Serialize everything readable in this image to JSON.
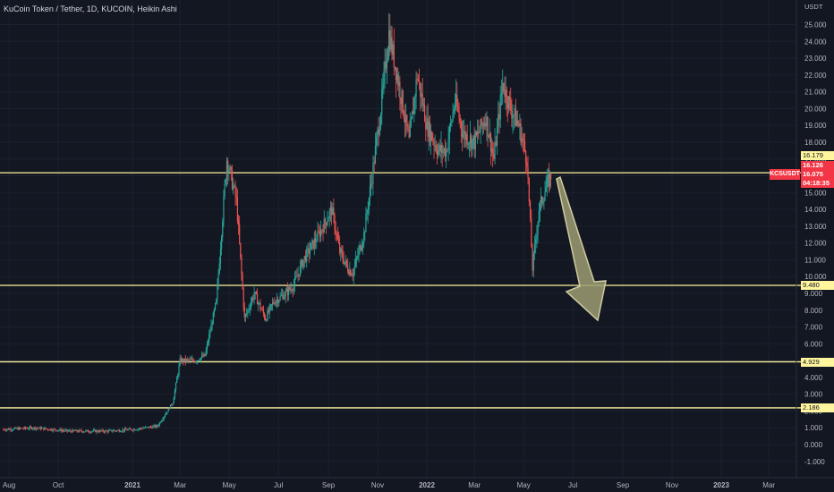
{
  "header": {
    "title": "KuCoin Token / Tether, 1D, KUCOIN, Heikin Ashi",
    "currency": "USDT",
    "symbol_tag": "KCSUSDT"
  },
  "price_labels": {
    "high": "16.179",
    "current_high": "16.126",
    "last": "16.075",
    "countdown": "04:18:35",
    "level_1": "9.480",
    "level_2": "4.929",
    "level_3": "2.186"
  },
  "colors": {
    "background": "#131722",
    "up_candle": "#26a69a",
    "down_candle": "#ef5350",
    "level_line": "#fff59d",
    "arrow_fill": "#9e9c72",
    "last_price": "#f23645"
  },
  "chart_data": {
    "type": "candlestick",
    "title": "KuCoin Token / Tether, 1D, KUCOIN, Heikin Ashi",
    "y_unit": "USDT",
    "ylim": [
      -1.6,
      26.5
    ],
    "y_ticks": [
      "-1.000",
      "0.000",
      "1.000",
      "2.000",
      "3.000",
      "4.000",
      "5.000",
      "6.000",
      "7.000",
      "8.000",
      "9.000",
      "10.000",
      "11.000",
      "12.000",
      "13.000",
      "14.000",
      "15.000",
      "16.000",
      "17.000",
      "18.000",
      "19.000",
      "20.000",
      "21.000",
      "22.000",
      "23.000",
      "24.000",
      "25.000"
    ],
    "x_ticks": [
      "Aug",
      "Oct",
      "2021",
      "Mar",
      "May",
      "Jul",
      "Sep",
      "Nov",
      "2022",
      "Mar",
      "May",
      "Jul",
      "Sep",
      "Nov",
      "2023",
      "Mar"
    ],
    "series": [
      {
        "x": [
          "2020-07-25",
          "2020-09-01",
          "2020-10-15",
          "2020-12-01",
          "2021-01-01",
          "2021-02-01",
          "2021-02-20",
          "2021-03-01",
          "2021-03-20",
          "2021-04-01",
          "2021-04-15",
          "2021-04-28",
          "2021-05-10",
          "2021-05-20",
          "2021-06-01",
          "2021-06-15",
          "2021-06-25",
          "2021-07-10",
          "2021-07-20",
          "2021-08-01",
          "2021-08-20",
          "2021-09-05",
          "2021-09-15",
          "2021-09-25",
          "2021-10-01",
          "2021-10-15",
          "2021-10-25",
          "2021-11-05",
          "2021-11-15",
          "2021-11-25",
          "2021-12-01",
          "2021-12-10",
          "2021-12-20",
          "2022-01-01",
          "2022-01-15",
          "2022-01-25",
          "2022-02-05",
          "2022-02-15",
          "2022-03-01",
          "2022-03-15",
          "2022-03-25",
          "2022-04-05",
          "2022-04-15",
          "2022-04-25",
          "2022-05-05",
          "2022-05-12",
          "2022-05-20",
          "2022-05-30",
          "2022-06-05"
        ],
        "values": [
          0.9,
          1.0,
          0.8,
          0.8,
          0.9,
          1.1,
          2.5,
          5.0,
          5.0,
          5.3,
          8.5,
          17.0,
          14.5,
          7.5,
          9.0,
          7.5,
          8.5,
          9.0,
          9.5,
          11.0,
          12.5,
          14.0,
          11.5,
          10.5,
          10.2,
          12.5,
          16.0,
          20.0,
          24.5,
          22.0,
          20.5,
          18.0,
          22.0,
          19.0,
          17.5,
          17.5,
          20.5,
          18.5,
          18.0,
          19.5,
          17.0,
          21.5,
          20.0,
          19.0,
          17.0,
          10.5,
          14.0,
          15.5,
          16.1
        ]
      }
    ],
    "levels": [
      16.179,
      9.48,
      4.929,
      2.186
    ],
    "annotation": "projected decline arrow toward 9.480"
  }
}
